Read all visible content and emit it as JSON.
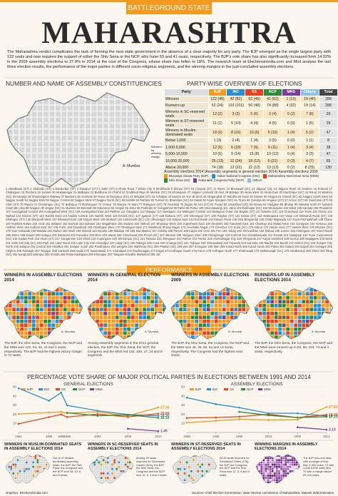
{
  "header": {
    "kicker": "BATTLEGROUND STATE",
    "title": "MAHARASHTRA",
    "intro": "The Maharashtra verdict complicates the task of forming the next state government in the absence of a clear majority for any party. The BJP emerged as the single largest party with 122 seats and now requires the support of either the Shiv Sena or the NCP, who have 63 and 41 seats, respectively. The BJP's vote share has also significantly increased from 14.02% in the 2009 assembly elections to 27.8% in 2014 at the cost of the Congress, whose share has fallen to 18%. The research team at Electionsinindia.com and Mint analyse the last three election results, the performance of the major parties in different socio-religious segments, and the winning margins in the just-concluded assembly elections."
  },
  "constituencies": {
    "title": "NUMBER AND NAME OF ASSEMBLY CONSTITUENCIES",
    "map_label": "A: Mumbai",
    "names": "1 Akkalkuwa (ST) 2 Shahada (ST) 3 Nandurbar (ST) 4 Navapur (ST) 5 Sakri (ST) 6 Dhule Rural 7 Dhule City 8 Sindkheda 9 Shirpur (ST) 10 Chopda (ST) 11 Raver 12 Bhusawal (SC) 13 Jalgaon City 14 Jalgaon Rural 15 Amalner 16 Erandol 17 Chalisgaon 18 Pachora 19 Jamner 20 Muktainagar 21 Malkapur 22 Buldhana 23 Chikhli 24 Sindkhed Raja 25 Mehkar (SC) 26 Khamgaon 27 Jalgaon (Jamod) 28 Akot 29 Balapur 30 Akola West 31 Akola East 32 Murtizapur (SC) 33 Risod 34 Washim (SC) 35 Karanja 36 Dhamangaon Railway 37 Badnera 38 Amravati 39 Teosa 40 Daryapur (SC) 41 Melghat (ST) 42 Achalpur 43 Morshi 44 Arvi 45 Deoli 46 Hinganghat 47 Wardha 48 Katol 49 Savner 50 Hingna 51 Umred (SC) 52 Nagpur South West 53 Nagpur South 54 Nagpur East 55 Nagpur Central 56 Nagpur West 57 Nagpur North (SC) 58 Kamthi 59 Ramtek 60 Tumsar 61 Bhandara (SC) 62 Sakoli 63 Arjuni Morgaon (SC) 64 Tirora 65 Gondiya 66 Amgaon (ST) 67 Armori (ST) 68 Gadchiroli (ST) 69 Aheri (ST) 70 Rajura 71 Chandrapur (SC) 72 Ballarpur 73 Brahmapuri 74 Chimur 75 Warora 76 Wani 77 Ralegaon (ST) 78 Yavatmal 79 Digras 80 Arni (ST) 81 Pusad 82 Umarkhed (SC) 83 Kinwat 84 Hadgaon 85 Bhokar 86 Nanded North 87 Nanded South 88 Loha 89 Naigaon 90 Deglur (SC) 91 Mukhed 92 Basmath 93 Kalamnuri 94 Hingoli 95 Jintur 96 Parbhani 97 Gangakhed 98 Pathri 99 Partur 100 Ghansawangi 101 Jalna 102 Badnapur (SC) 103 Bhokardan 104 Sillod 105 Kannad 106 Phulambri 107 Aurangabad Central 108 Aurangabad West (SC) 109 Aurangabad East 110 Paithan 111 Gangapur 112 Vaijapur 113 Nandgaon 114 Malegaon Central 115 Malegaon Outer 116 Baglan (ST) 117 Kalwan (ST) 118 Chandwad 119 Yevla 120 Sinnar 121 Niphad 122 Dindori (ST) 123 Nashik East 124 Nashik Central 125 Nashik West 126 Devlali (SC) 127 Igatpuri (ST) 128 Dahanu (ST) 129 Vikramgad (ST) 130 Palghar (ST) 131 Boisar (ST) 132 Nalasopara 133 Vasai 134 Bhiwandi Rural (ST) 135 Shahapur (ST) 136 Bhiwandi West 137 Bhiwandi East 138 Kalyan West 139 Murbad 140 Ambernath (SC) 141 Ulhasnagar 142 Kalyan East 143 Dombivali 144 Kalyan Rural 145 Mira Bhayandar 146 Ovala Majiwada 147 Kopri-Pachpakhadi 148 Thane 149 Mumbra-Kalwa 150 Airoli 151 Belapur 152 Borivali 153 Dahisar 154 Magathane 155 Mulund 156 Vikhroli 157 Bhandup West 158 Jogeshwari East 159 Dindoshi 160 Kandivali East 161 Charkop 162 Malad West 163 Goregaon 164 Versova 165 Andheri West 166 Andheri East 167 Vile Parle 168 Chandivali 169 Ghatkopar West 170 Ghatkopar East 171 Mankhurd Shivaji Nagar 172 Anushakti Nagar 173 Chembur 174 Kurla (SC) 175 Kalina 176 Vandre East 177 Vandre West 178 Dharavi (SC) 179 Sion Koliwada 180 Wadala 181 Mahim 182 Worli 183 Shivadi 184 Byculla 185 Malabar Hill 186 Mumbadevi 187 Colaba 188 Panvel 189 Karjat 190 Uran 191 Pen 192 Alibag 193 Shrivardhan 194 Mahad 195 Junnar 196 Ambegaon 197 Khed Alandi 198 Shirur 199 Daund 200 Indapur 201 Baramati 202 Purandar 203 Bhor 204 Maval 205 Chinchwad 206 Pimpri (SC) 207 Bhosari 208 Vadgaon Sheri 209 Shivajinagar 210 Kothrud 211 Khadakwasala 212 Parvati 213 Hadapsar 214 Pune Cantonment (SC) 215 Kasba Peth 216 Akole (ST) 217 Sangamner 218 Shirdi 219 Kopargaon 220 Shrirampur (SC) 221 Nevasa 222 Shevgaon 223 Rahuri 224 Parner 225 Ahmednagar City 226 Shrigonda 227 Karjat Jamkhed 228 Georai 229 Majalgaon 230 Beed 231 Ashti 232 Kaij (SC) 233 Parli 234 Latur Rural 235 Latur City 236 Ahmadpur 237 Udgir (SC) 238 Nilanga 239 Ausa 240 Umarga (SC) 241 Tuljapur 242 Osmanabad 243 Paranda 244 Karmala 245 Madha 246 Barshi 247 Mohol (SC) 248 Solapur City North 249 Solapur City Central 250 Akkalkot 251 Solapur South 252 Pandharpur 253 Sangola 254 Malshiras (SC) 255 Phaltan (SC) 256 Wai 257 Koregaon 258 Man 259 Karad North 260 Karad South 261 Patan 262 Satara 263 Dapoli 264 Guhagar 265 Chiplun 266 Ratnagiri 267 Rajapur 268 Kankavli 269 Kudal 270 Sawantwadi 271 Chandgad 272 Radhanagari 273 Kagal 274 Kolhapur South 275 Karvir 276 Kolhapur North 277 Shahuwadi 278 Hatkanangle (SC) 279 Ichalkaranji 280 Shirol 281 Miraj (SC) 282 Sangli 283 Islampur 284 Shirala 285 Palus-Kadegaon 286 Khanapur 287 Tasgaon-Kavathe Mahankal 288 Jat"
  },
  "overview": {
    "title": "PARTY-WISE OVERVIEW OF ELECTIONS",
    "margin_label": "Winners by winning margin",
    "legend": "Assembly elections 2014 (Assembly segments in general election 2014) Assembly elections 2009",
    "columns": [
      "Party",
      "BJP",
      "INC",
      "SS",
      "NCP",
      "MNS",
      "Others",
      "Total"
    ],
    "rows": [
      [
        "Winners",
        "122 (46)",
        "42 (82)",
        "63 (45)",
        "41 (62)",
        "1 (13)",
        "19 (40)",
        "288"
      ],
      [
        "Runners-up",
        "52 (24)",
        "103 (101)",
        "56 (48)",
        "74 (88)",
        "4 (32)",
        "19 (14)",
        "288"
      ],
      [
        "Winners in SC-reserved seats",
        "12 (2)",
        "3 (3)",
        "5 (6)",
        "2 (4)",
        "0 (2)",
        "7 (8)",
        "29"
      ],
      [
        "Winners in ST-reserved seats",
        "11 (1)",
        "5 (10)",
        "4 (4)",
        "4 (5)",
        "0 (0)",
        "1 (5)",
        "25"
      ],
      [
        "Winners in Muslim-dominated seats",
        "18 (6)",
        "8 (16)",
        "10 (9)",
        "5 (10)",
        "1 (4)",
        "5 (2)",
        "47"
      ],
      [
        "Below 1,000",
        "1 (3)",
        "2 (4)",
        "1 (4)",
        "3 (5)",
        "0 (0)",
        "1 (1)",
        "8"
      ],
      [
        "1,000-5,000",
        "12 (6)",
        "6 (18)",
        "7 (9)",
        "9 (11)",
        "1 (4)",
        "3 (4)",
        "38"
      ],
      [
        "5,000-10,000",
        "10 (6)",
        "9 (14)",
        "15 (8)",
        "10 (12)",
        "0 (4)",
        "3 (3)",
        "47"
      ],
      [
        "10,000-20,000",
        "25 (13)",
        "12 (24)",
        "18 (12)",
        "6 (21)",
        "0 (3)",
        "4 (7)",
        "65"
      ],
      [
        "Above 20,000",
        "74 (18)",
        "13 (22)",
        "22 (12)",
        "13 (13)",
        "0 (2)",
        "8 (25)",
        "130"
      ]
    ],
    "key": [
      "Bharatiya Janata Party (BJP)",
      "Indian National Congress (INC)",
      "Maharashtra Navnirman Sena (MNS)",
      "Shiv Sena (SS)",
      "Nationalist Congress Party (NCP)",
      "Others"
    ]
  },
  "performance": {
    "title": "PERFORMANCE",
    "panels": [
      {
        "title": "WINNERS IN ASSEMBLY ELECTIONS 2014",
        "caption": "The BJP, the Shiv Sena, the Congress, the NCP and the MNS won 122, 63, 42, 41 and 1 seats, respectively. The BJP had the highest victory margin in 74 seats.",
        "map_label": "A: Mumbai"
      },
      {
        "title": "WINNERS IN GENERAL ELECTION 2014",
        "caption": "Among assembly segments in the 2014 general election, the BJP, the Shiv Sena, the NCP, the Congress and the MNS led 132, 100, 27, 24 and 0 segments.",
        "map_label": "A: Mumbai"
      },
      {
        "title": "WINNERS IN ASSEMBLY ELECTIONS 2009",
        "caption": "The BJP, the Shiv Sena, the Congress, the NCP and the MNS won 46, 45, 82, 62 and 13 seats, respectively. The Congress had the highest seat share.",
        "map_label": "A: Mumbai"
      },
      {
        "title": "RUNNERS-UP IN ASSEMBLY ELECTIONS 2014",
        "caption": "The BJP, the Shiv Sena, the Congress, the NCP and the MNS were runners-up in 52, 56, 103, 74 and 4 seats, respectively.",
        "map_label": "A: Mumbai"
      }
    ]
  },
  "vote_share": {
    "title": "PERCENTAGE VOTE SHARE OF MAJOR POLITICAL PARTIES IN ELECTIONS BETWEEN 1991 AND 2014"
  },
  "chart_data": [
    {
      "type": "line",
      "title": "GENERAL ELECTIONS",
      "x": [
        1991,
        1996,
        1998,
        1999,
        2004,
        2009,
        2014
      ],
      "xlim": [
        1991,
        2014
      ],
      "xticks": [
        1991,
        1996,
        1998,
        1999,
        2004,
        2009,
        2014
      ],
      "ylim": [
        0,
        50
      ],
      "yticks": [
        10,
        20,
        30,
        40,
        50
      ],
      "series": [
        {
          "name": "BJP",
          "color": "#f39a1f",
          "values": [
            20.2,
            21.8,
            22.5,
            21.2,
            22.6,
            18.2,
            27.3
          ],
          "value_labels": [
            null,
            null,
            null,
            null,
            null,
            null,
            "27.30"
          ]
        },
        {
          "name": "INC",
          "color": "#2a8fd0",
          "values": [
            48.4,
            34.8,
            43.6,
            29.7,
            23.8,
            19.6,
            18.3
          ],
          "value_labels": [
            null,
            null,
            null,
            null,
            null,
            null,
            "18.30"
          ]
        },
        {
          "name": "SS",
          "color": "#e8411f",
          "values": [
            9.5,
            16.8,
            19.7,
            16.9,
            20.1,
            17.0,
            20.6
          ],
          "value_labels": [
            null,
            null,
            null,
            null,
            null,
            null,
            "20.60"
          ]
        },
        {
          "name": "NCP",
          "color": "#2e8b3e",
          "values": [
            null,
            null,
            null,
            21.6,
            18.3,
            19.3,
            16.1
          ],
          "value_labels": [
            null,
            null,
            null,
            null,
            null,
            null,
            "16.10"
          ]
        },
        {
          "name": "MNS",
          "color": "#7b3f98",
          "values": [
            null,
            null,
            null,
            null,
            null,
            4.1,
            1.45
          ],
          "value_labels": [
            null,
            null,
            null,
            null,
            null,
            null,
            "1.45"
          ]
        }
      ]
    },
    {
      "type": "line",
      "title": "ASSEMBLY ELECTIONS",
      "x": [
        1990,
        1995,
        1999,
        2004,
        2009,
        2014
      ],
      "xlim": [
        1990,
        2014
      ],
      "xticks": [
        1990,
        1995,
        1999,
        2004,
        2009,
        2014
      ],
      "ylim": [
        0,
        50
      ],
      "yticks": [
        10,
        20,
        30,
        40,
        50
      ],
      "series": [
        {
          "name": "BJP",
          "color": "#f39a1f",
          "values": [
            10.7,
            12.8,
            14.5,
            13.7,
            14.0,
            27.8
          ],
          "value_labels": [
            null,
            null,
            null,
            null,
            null,
            "27.80"
          ]
        },
        {
          "name": "INC",
          "color": "#2a8fd0",
          "values": [
            38.2,
            31.0,
            27.2,
            21.1,
            21.0,
            18.0
          ],
          "value_labels": [
            null,
            null,
            null,
            null,
            null,
            "18"
          ]
        },
        {
          "name": "SS",
          "color": "#e8411f",
          "values": [
            15.9,
            16.4,
            17.3,
            19.9,
            16.3,
            19.3
          ],
          "value_labels": [
            null,
            null,
            null,
            null,
            null,
            "19.30"
          ]
        },
        {
          "name": "NCP",
          "color": "#2e8b3e",
          "values": [
            null,
            null,
            22.6,
            18.8,
            16.4,
            17.2
          ],
          "value_labels": [
            null,
            null,
            null,
            null,
            null,
            "17.20"
          ]
        },
        {
          "name": "MNS",
          "color": "#7b3f98",
          "values": [
            null,
            null,
            null,
            null,
            5.7,
            3.1
          ],
          "value_labels": [
            null,
            null,
            null,
            null,
            null,
            "3.10"
          ]
        }
      ]
    }
  ],
  "bottom": {
    "panels": [
      {
        "title": "WINNERS IN MUSLIM-DOMINATED SEATS IN ASSEMBLY ELECTIONS 2014",
        "caption": "Out of 47 Muslim-dominated assembly seats, the BJP, the Shiv Sena, the Congress and the NCP won 18, 10, 8 and 5 seats."
      },
      {
        "title": "WINNERS IN SC-RESERVED SEATS IN ASSEMBLY ELECTIONS 2014",
        "caption": "Among 29 seats reserved for Scheduled Castes (SCs), the BJP, the Shiv Sena, the Congress and the NCP won 12, 5, 3 and 2 seats."
      },
      {
        "title": "WINNERS IN ST-RESERVED SEATS IN ASSEMBLY ELECTIONS 2014",
        "caption": "Of 25 seats reserved for Scheduled Tribes (STs), the BJP, the Congress, the NCP and the Shiv Sena won 11, 5, 4 and 4 seats."
      },
      {
        "title": "WINNING MARGINS IN ASSEMBLY ELECTIONS 2014",
        "caption": "The BJP won-one seat with a margin of less than 1,000 votes, 12 with 1,000-5,000 votes and 74 with a margin above 20,000 votes."
      }
    ]
  },
  "footer": {
    "credit": "Graphics: Electionsinindia.com",
    "source": "Sources: Chief Election Commission, state election commission of Maharashtra, Dataset India Estimates"
  }
}
